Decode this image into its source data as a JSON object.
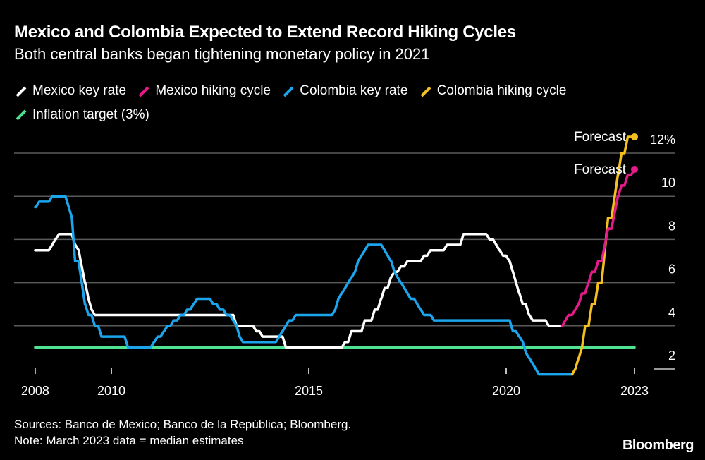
{
  "header": {
    "title": "Mexico and Colombia Expected to Extend Record Hiking Cycles",
    "subtitle": "Both central banks began tightening monetary policy in 2021"
  },
  "footer": {
    "sources": "Sources: Banco de Mexico; Banco de la República; Bloomberg.",
    "note": "Note: March 2023 data = median estimates",
    "logo": "Bloomberg"
  },
  "chart_data": {
    "type": "line",
    "title": "Mexico and Colombia Expected to Extend Record Hiking Cycles",
    "xlabel": "",
    "ylabel": "%",
    "xlim": [
      2008.0,
      2023.25
    ],
    "ylim": [
      1.5,
      13
    ],
    "legend_placement": "top-left",
    "y_ticks": [
      {
        "value": 2,
        "label": "2"
      },
      {
        "value": 4,
        "label": "4"
      },
      {
        "value": 6,
        "label": "6"
      },
      {
        "value": 8,
        "label": "8"
      },
      {
        "value": 10,
        "label": "10"
      },
      {
        "value": 12,
        "label": "12%"
      }
    ],
    "x_ticks": [
      {
        "at": 2008.07,
        "label": "2008"
      },
      {
        "at": 2010.0,
        "label": "2010"
      },
      {
        "at": 2015.0,
        "label": "2015"
      },
      {
        "at": 2020.0,
        "label": "2020"
      },
      {
        "at": 2023.25,
        "label": "2023"
      }
    ],
    "annotations": [
      {
        "series": "Colombia hiking cycle",
        "text": "Forecast"
      },
      {
        "series": "Mexico hiking cycle",
        "text": "Forecast"
      }
    ],
    "series": [
      {
        "name": "Mexico key rate",
        "color": "#ffffff",
        "points": [
          [
            2008.07,
            7.5
          ],
          [
            2008.5,
            7.75
          ],
          [
            2008.58,
            8.0
          ],
          [
            2008.67,
            8.25
          ],
          [
            2009.08,
            7.75
          ],
          [
            2009.17,
            7.5
          ],
          [
            2009.25,
            6.75
          ],
          [
            2009.33,
            6.0
          ],
          [
            2009.42,
            5.25
          ],
          [
            2009.5,
            4.75
          ],
          [
            2009.58,
            4.5
          ],
          [
            2013.17,
            4.0
          ],
          [
            2013.67,
            3.75
          ],
          [
            2013.83,
            3.5
          ],
          [
            2014.42,
            3.0
          ],
          [
            2015.92,
            3.25
          ],
          [
            2016.08,
            3.75
          ],
          [
            2016.42,
            4.25
          ],
          [
            2016.67,
            4.75
          ],
          [
            2016.83,
            5.25
          ],
          [
            2016.92,
            5.75
          ],
          [
            2017.08,
            6.25
          ],
          [
            2017.17,
            6.5
          ],
          [
            2017.33,
            6.75
          ],
          [
            2017.5,
            7.0
          ],
          [
            2017.92,
            7.25
          ],
          [
            2018.08,
            7.5
          ],
          [
            2018.5,
            7.75
          ],
          [
            2018.92,
            8.25
          ],
          [
            2019.58,
            8.0
          ],
          [
            2019.75,
            7.75
          ],
          [
            2019.83,
            7.5
          ],
          [
            2019.92,
            7.25
          ],
          [
            2020.08,
            7.0
          ],
          [
            2020.17,
            6.5
          ],
          [
            2020.25,
            6.0
          ],
          [
            2020.33,
            5.5
          ],
          [
            2020.42,
            5.0
          ],
          [
            2020.58,
            4.5
          ],
          [
            2020.67,
            4.25
          ],
          [
            2021.08,
            4.0
          ],
          [
            2021.42,
            4.0
          ]
        ]
      },
      {
        "name": "Mexico hiking cycle",
        "color": "#e8198b",
        "points": [
          [
            2021.42,
            4.0
          ],
          [
            2021.5,
            4.25
          ],
          [
            2021.58,
            4.5
          ],
          [
            2021.75,
            4.75
          ],
          [
            2021.83,
            5.0
          ],
          [
            2021.92,
            5.5
          ],
          [
            2022.08,
            6.0
          ],
          [
            2022.17,
            6.5
          ],
          [
            2022.33,
            7.0
          ],
          [
            2022.5,
            7.75
          ],
          [
            2022.58,
            8.5
          ],
          [
            2022.75,
            9.25
          ],
          [
            2022.83,
            10.0
          ],
          [
            2022.92,
            10.5
          ],
          [
            2023.08,
            11.0
          ],
          [
            2023.25,
            11.25
          ]
        ]
      },
      {
        "name": "Colombia key rate",
        "color": "#1ba5ec",
        "points": [
          [
            2008.07,
            9.5
          ],
          [
            2008.17,
            9.75
          ],
          [
            2008.5,
            10.0
          ],
          [
            2008.92,
            9.5
          ],
          [
            2009.0,
            9.0
          ],
          [
            2009.08,
            7.0
          ],
          [
            2009.25,
            6.0
          ],
          [
            2009.33,
            5.0
          ],
          [
            2009.42,
            4.5
          ],
          [
            2009.58,
            4.0
          ],
          [
            2009.75,
            3.5
          ],
          [
            2010.42,
            3.0
          ],
          [
            2011.08,
            3.25
          ],
          [
            2011.17,
            3.5
          ],
          [
            2011.33,
            3.75
          ],
          [
            2011.42,
            4.0
          ],
          [
            2011.58,
            4.25
          ],
          [
            2011.75,
            4.5
          ],
          [
            2011.92,
            4.75
          ],
          [
            2012.08,
            5.0
          ],
          [
            2012.17,
            5.25
          ],
          [
            2012.58,
            5.0
          ],
          [
            2012.75,
            4.75
          ],
          [
            2012.92,
            4.5
          ],
          [
            2013.08,
            4.25
          ],
          [
            2013.17,
            4.0
          ],
          [
            2013.25,
            3.5
          ],
          [
            2013.33,
            3.25
          ],
          [
            2014.25,
            3.5
          ],
          [
            2014.33,
            3.75
          ],
          [
            2014.42,
            4.0
          ],
          [
            2014.5,
            4.25
          ],
          [
            2014.67,
            4.5
          ],
          [
            2015.67,
            4.75
          ],
          [
            2015.75,
            5.25
          ],
          [
            2015.83,
            5.5
          ],
          [
            2015.92,
            5.75
          ],
          [
            2016.0,
            6.0
          ],
          [
            2016.08,
            6.25
          ],
          [
            2016.17,
            6.5
          ],
          [
            2016.25,
            7.0
          ],
          [
            2016.33,
            7.25
          ],
          [
            2016.42,
            7.5
          ],
          [
            2016.5,
            7.75
          ],
          [
            2016.92,
            7.5
          ],
          [
            2017.0,
            7.25
          ],
          [
            2017.08,
            7.0
          ],
          [
            2017.17,
            6.5
          ],
          [
            2017.25,
            6.25
          ],
          [
            2017.33,
            6.0
          ],
          [
            2017.42,
            5.75
          ],
          [
            2017.5,
            5.5
          ],
          [
            2017.58,
            5.25
          ],
          [
            2017.75,
            5.0
          ],
          [
            2017.83,
            4.75
          ],
          [
            2017.92,
            4.5
          ],
          [
            2018.17,
            4.25
          ],
          [
            2020.17,
            3.75
          ],
          [
            2020.33,
            3.5
          ],
          [
            2020.42,
            3.25
          ],
          [
            2020.5,
            2.75
          ],
          [
            2020.58,
            2.5
          ],
          [
            2020.67,
            2.25
          ],
          [
            2020.75,
            2.0
          ],
          [
            2020.83,
            1.75
          ],
          [
            2021.67,
            1.75
          ]
        ]
      },
      {
        "name": "Colombia hiking cycle",
        "color": "#f5c01f",
        "points": [
          [
            2021.67,
            1.75
          ],
          [
            2021.75,
            2.0
          ],
          [
            2021.83,
            2.5
          ],
          [
            2021.92,
            3.0
          ],
          [
            2022.0,
            4.0
          ],
          [
            2022.17,
            5.0
          ],
          [
            2022.33,
            6.0
          ],
          [
            2022.5,
            7.5
          ],
          [
            2022.58,
            9.0
          ],
          [
            2022.75,
            10.0
          ],
          [
            2022.83,
            11.0
          ],
          [
            2022.92,
            12.0
          ],
          [
            2023.08,
            12.75
          ],
          [
            2023.25,
            12.75
          ]
        ]
      },
      {
        "name": "Inflation target (3%)",
        "color": "#4fe290",
        "points": [
          [
            2008.07,
            3.0
          ],
          [
            2023.25,
            3.0
          ]
        ]
      }
    ]
  }
}
